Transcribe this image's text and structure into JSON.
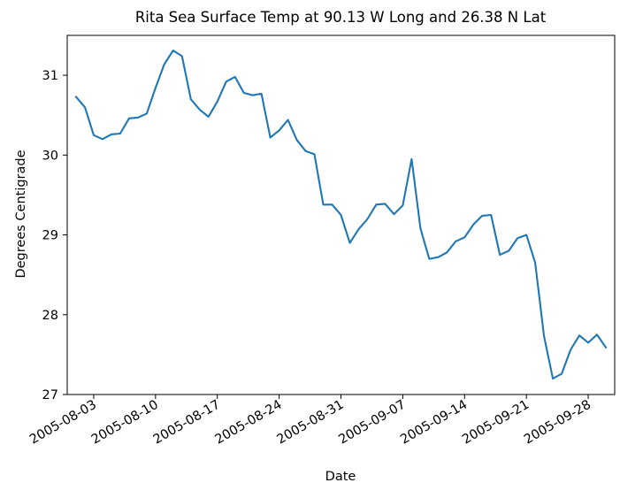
{
  "chart_data": {
    "type": "line",
    "title": "Rita Sea Surface Temp at 90.13 W Long and 26.38 N Lat",
    "xlabel": "Date",
    "ylabel": "Degrees Centigrade",
    "xlim": [
      "2005-07-31",
      "2005-10-01"
    ],
    "ylim": [
      27,
      31.5
    ],
    "grid": false,
    "line_color": "#1f77b4",
    "x_ticks": [
      "2005-08-03",
      "2005-08-10",
      "2005-08-17",
      "2005-08-24",
      "2005-08-31",
      "2005-09-07",
      "2005-09-14",
      "2005-09-21",
      "2005-09-28"
    ],
    "y_ticks": [
      27,
      28,
      29,
      30,
      31
    ],
    "x": [
      "2005-08-01",
      "2005-08-02",
      "2005-08-03",
      "2005-08-04",
      "2005-08-05",
      "2005-08-06",
      "2005-08-07",
      "2005-08-08",
      "2005-08-09",
      "2005-08-10",
      "2005-08-11",
      "2005-08-12",
      "2005-08-13",
      "2005-08-14",
      "2005-08-15",
      "2005-08-16",
      "2005-08-17",
      "2005-08-18",
      "2005-08-19",
      "2005-08-20",
      "2005-08-21",
      "2005-08-22",
      "2005-08-23",
      "2005-08-24",
      "2005-08-25",
      "2005-08-26",
      "2005-08-27",
      "2005-08-28",
      "2005-08-29",
      "2005-08-30",
      "2005-08-31",
      "2005-09-01",
      "2005-09-02",
      "2005-09-03",
      "2005-09-04",
      "2005-09-05",
      "2005-09-06",
      "2005-09-07",
      "2005-09-08",
      "2005-09-09",
      "2005-09-10",
      "2005-09-11",
      "2005-09-12",
      "2005-09-13",
      "2005-09-14",
      "2005-09-15",
      "2005-09-16",
      "2005-09-17",
      "2005-09-18",
      "2005-09-19",
      "2005-09-20",
      "2005-09-21",
      "2005-09-22",
      "2005-09-23",
      "2005-09-24",
      "2005-09-25",
      "2005-09-26",
      "2005-09-27",
      "2005-09-28",
      "2005-09-29",
      "2005-09-30"
    ],
    "series": [
      {
        "values": [
          30.73,
          30.6,
          30.25,
          30.2,
          30.26,
          30.27,
          30.46,
          30.47,
          30.52,
          30.84,
          31.14,
          31.31,
          31.24,
          30.7,
          30.57,
          30.48,
          30.67,
          30.92,
          30.98,
          30.78,
          30.75,
          30.77,
          30.22,
          30.31,
          30.44,
          30.19,
          30.05,
          30.01,
          29.38,
          29.38,
          29.25,
          28.9,
          29.07,
          29.2,
          29.38,
          29.39,
          29.26,
          29.37,
          29.95,
          29.08,
          28.7,
          28.72,
          28.78,
          28.92,
          28.97,
          29.13,
          29.24,
          29.25,
          28.75,
          28.8,
          28.96,
          29.0,
          28.65,
          27.73,
          27.2,
          27.26,
          27.56,
          27.74,
          27.65,
          27.75,
          27.59
        ]
      }
    ]
  }
}
